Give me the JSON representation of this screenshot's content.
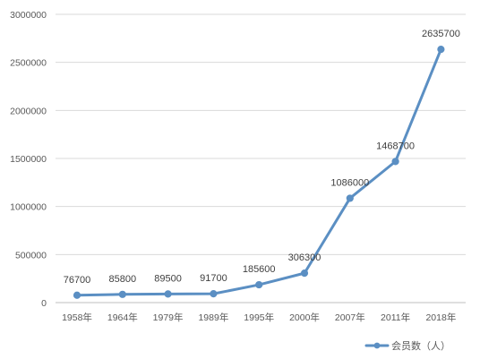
{
  "chart_data": {
    "type": "line",
    "title": "",
    "xlabel": "",
    "ylabel": "",
    "categories": [
      "1958年",
      "1964年",
      "1979年",
      "1989年",
      "1995年",
      "2000年",
      "2007年",
      "2011年",
      "2018年"
    ],
    "series": [
      {
        "name": "会员数（人）",
        "values": [
          76700,
          85800,
          89500,
          91700,
          185600,
          306300,
          1086000,
          1468700,
          2635700
        ],
        "color": "#5b8fc3"
      }
    ],
    "data_labels": [
      "76700",
      "85800",
      "89500",
      "91700",
      "185600",
      "306300",
      "1086000",
      "1468700",
      "2635700"
    ],
    "ylim": [
      0,
      3000000
    ],
    "yticks": [
      0,
      500000,
      1000000,
      1500000,
      2000000,
      2500000,
      3000000
    ],
    "ytick_labels": [
      "0",
      "500000",
      "1000000",
      "1500000",
      "2000000",
      "2500000",
      "3000000"
    ],
    "grid": true,
    "legend_position": "bottom-right"
  }
}
